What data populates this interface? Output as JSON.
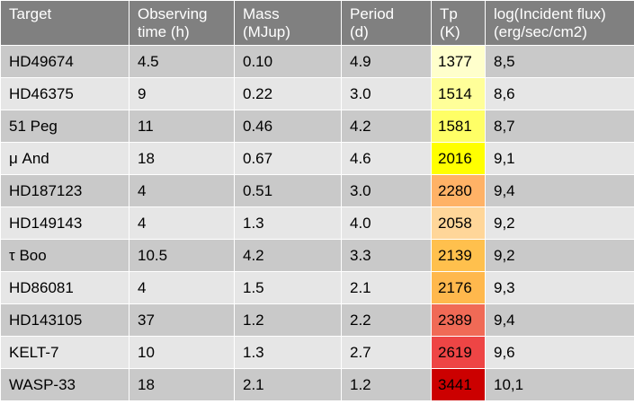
{
  "table": {
    "headers": [
      "Target",
      "Observing\ntime (h)",
      "Mass\n(MJup)",
      "Period\n(d)",
      "Tp\n(K)",
      "log(Incident flux)\n(erg/sec/cm2)"
    ],
    "rows": [
      {
        "target": "HD49674",
        "time": "4.5",
        "mass": "0.10",
        "period": "4.9",
        "tp": "1377",
        "flux": "8,5",
        "tp_color": "#ffffcc"
      },
      {
        "target": "HD46375",
        "time": "9",
        "mass": "0.22",
        "period": "3.0",
        "tp": "1514",
        "flux": "8,6",
        "tp_color": "#ffff99"
      },
      {
        "target": "51 Peg",
        "time": "11",
        "mass": "0.46",
        "period": "4.2",
        "tp": "1581",
        "flux": "8,7",
        "tp_color": "#ffff66"
      },
      {
        "target": "μ And",
        "time": "18",
        "mass": "0.67",
        "period": "4.6",
        "tp": "2016",
        "flux": "9,1",
        "tp_color": "#ffff00"
      },
      {
        "target": "HD187123",
        "time": "4",
        "mass": "0.51",
        "period": "3.0",
        "tp": "2280",
        "flux": "9,4",
        "tp_color": "#ffb266"
      },
      {
        "target": "HD149143",
        "time": "4",
        "mass": "1.3",
        "period": "4.0",
        "tp": "2058",
        "flux": "9,2",
        "tp_color": "#ffd699"
      },
      {
        "target": "τ Boo",
        "time": "10.5",
        "mass": "4.2",
        "period": "3.3",
        "tp": "2139",
        "flux": "9,2",
        "tp_color": "#ffc04d"
      },
      {
        "target": "HD86081",
        "time": "4",
        "mass": "1.5",
        "period": "2.1",
        "tp": "2176",
        "flux": "9,3",
        "tp_color": "#ffb84d"
      },
      {
        "target": "HD143105",
        "time": "37",
        "mass": "1.2",
        "period": "2.2",
        "tp": "2389",
        "flux": "9,4",
        "tp_color": "#f06a56"
      },
      {
        "target": "KELT-7",
        "time": "10",
        "mass": "1.3",
        "period": "2.7",
        "tp": "2619",
        "flux": "9,6",
        "tp_color": "#ee4545"
      },
      {
        "target": "WASP-33",
        "time": "18",
        "mass": "2.1",
        "period": "1.2",
        "tp": "3441",
        "flux": "10,1",
        "tp_color": "#cc0000"
      }
    ]
  }
}
